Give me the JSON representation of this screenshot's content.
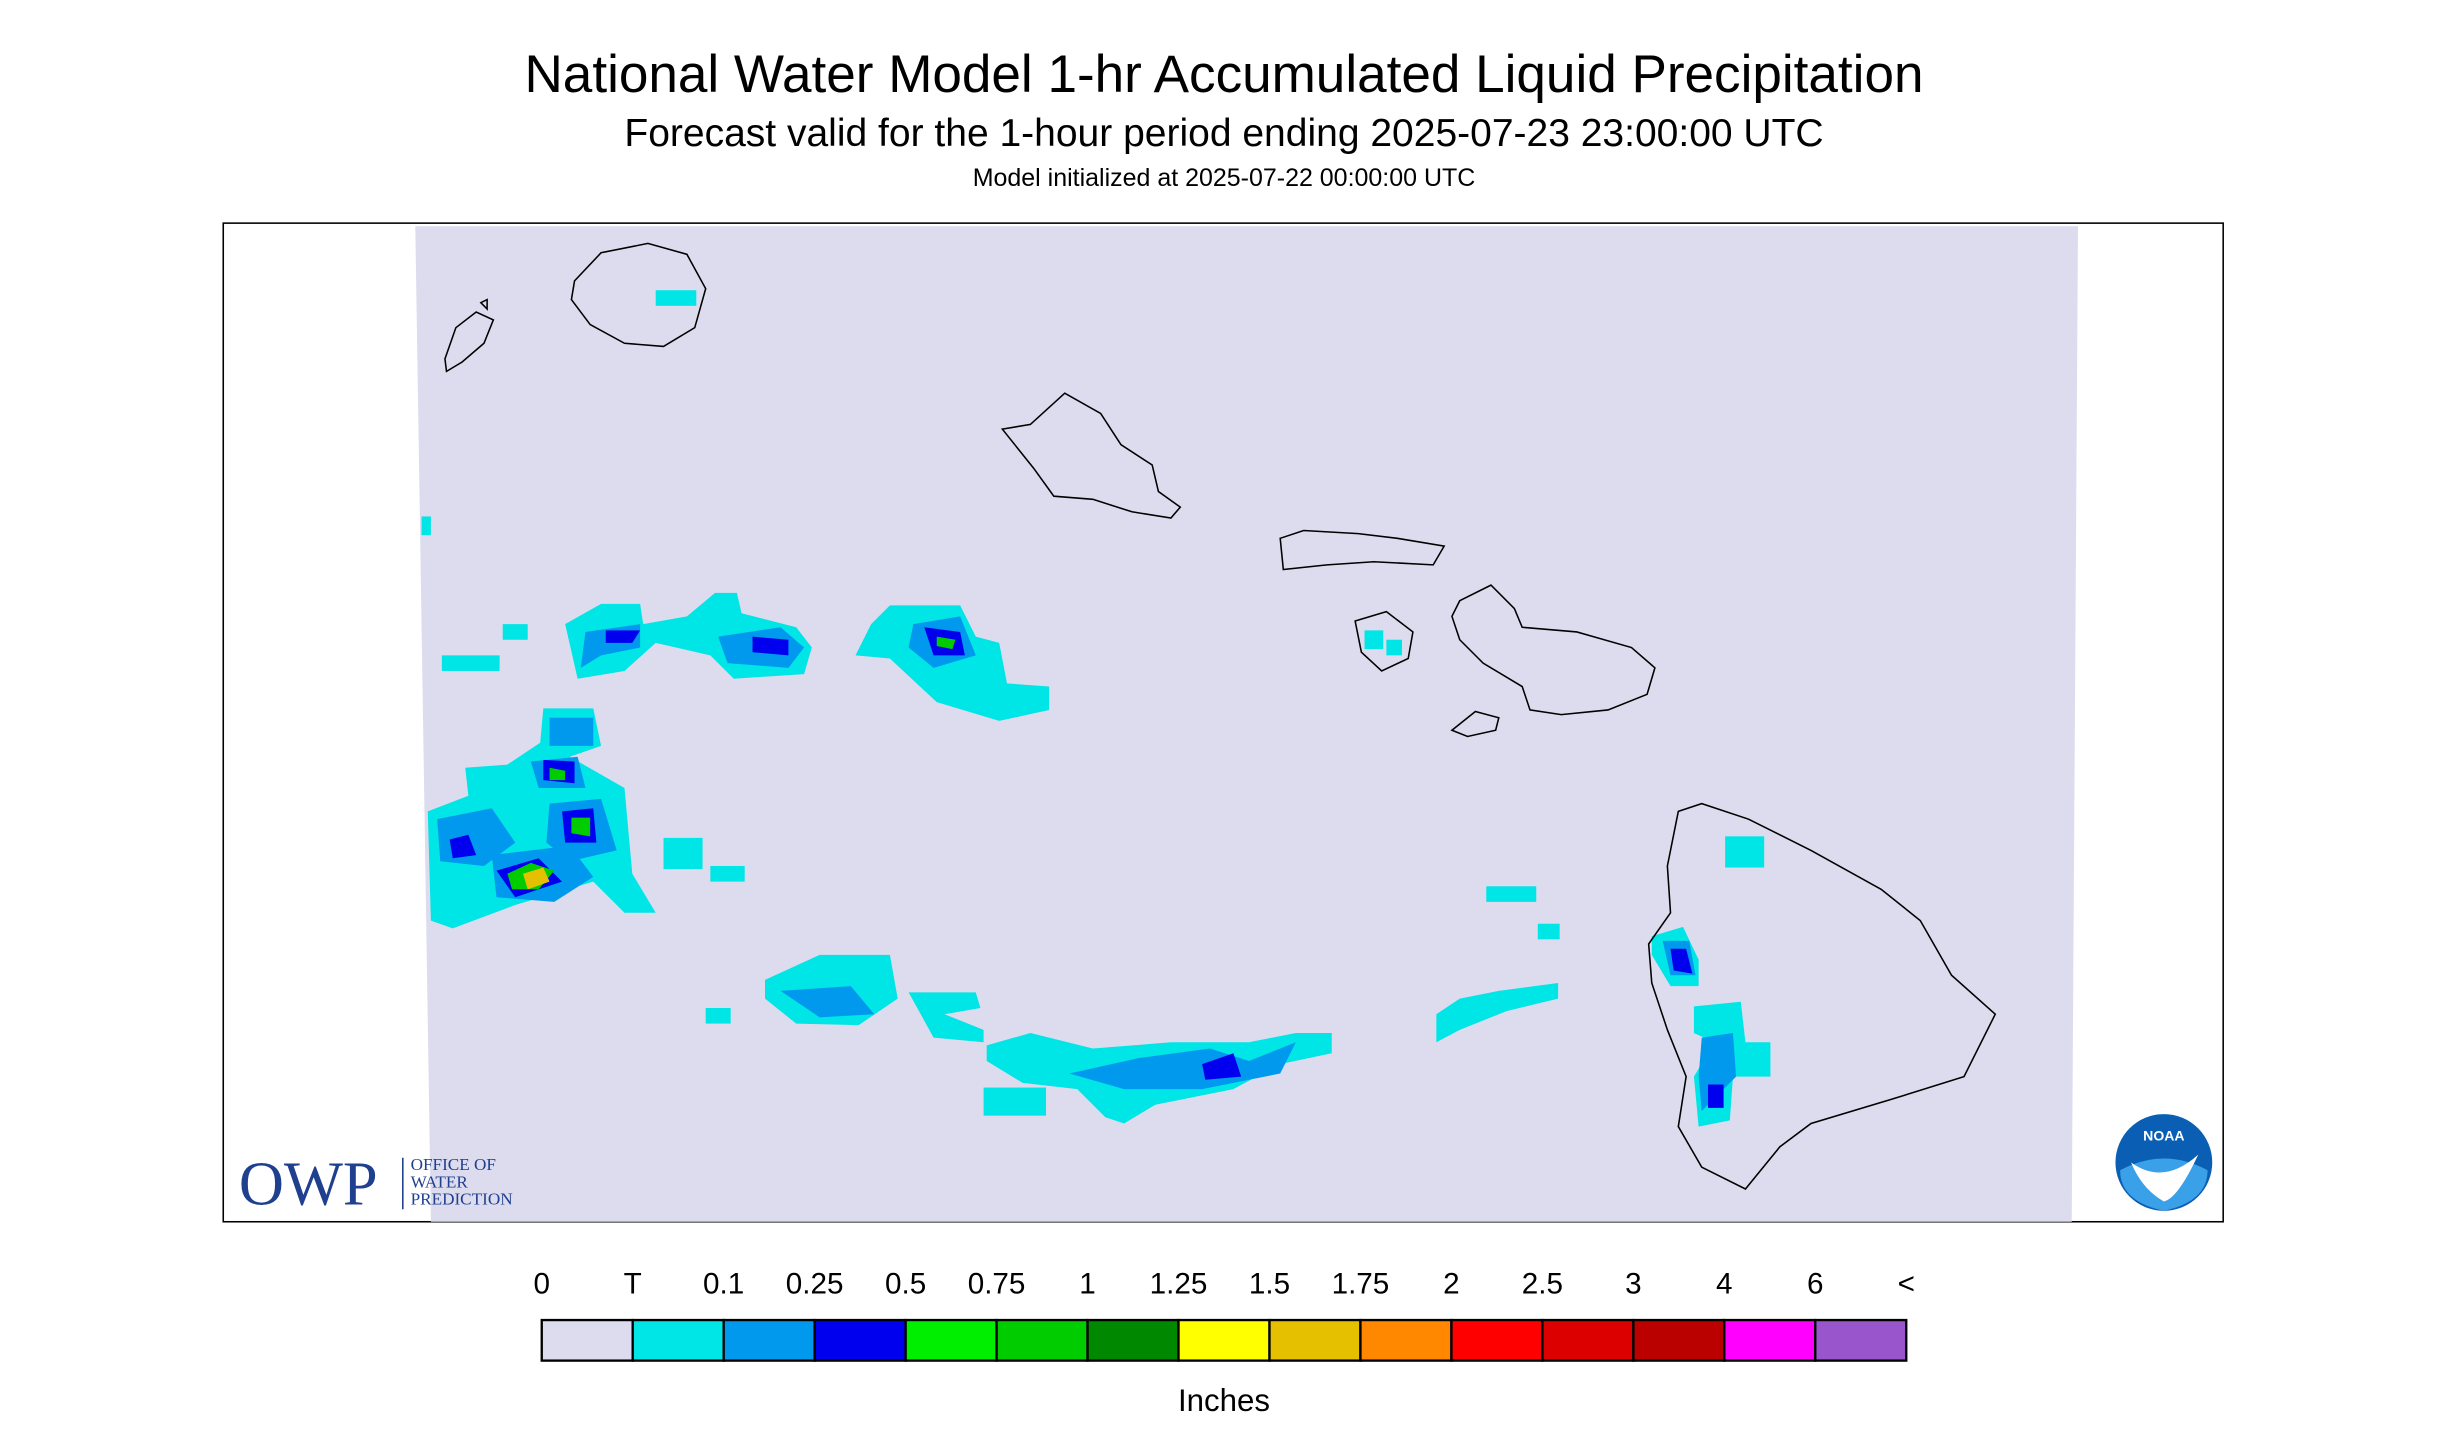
{
  "header": {
    "title": "National Water Model 1-hr Accumulated Liquid Precipitation",
    "subtitle": "Forecast valid for the 1-hour period ending 2025-07-23 23:00:00 UTC",
    "init": "Model initialized at 2025-07-22 00:00:00 UTC"
  },
  "logos": {
    "owp": "OWP",
    "owp_name": [
      "OFFICE OF",
      "WATER",
      "PREDICTION"
    ],
    "noaa": "NOAA"
  },
  "legend": {
    "labels": [
      "0",
      "T",
      "0.1",
      "0.25",
      "0.5",
      "0.75",
      "1",
      "1.25",
      "1.5",
      "1.75",
      "2",
      "2.5",
      "3",
      "4",
      "6",
      "<"
    ],
    "colors": [
      "#dcdcee",
      "#00e5e5",
      "#0099ee",
      "#0000ee",
      "#00ee00",
      "#00cc00",
      "#008800",
      "#ffff00",
      "#e5c000",
      "#ff8800",
      "#ff0000",
      "#dd0000",
      "#bb0000",
      "#ff00ff",
      "#9955cc"
    ],
    "unit": "Inches"
  }
}
